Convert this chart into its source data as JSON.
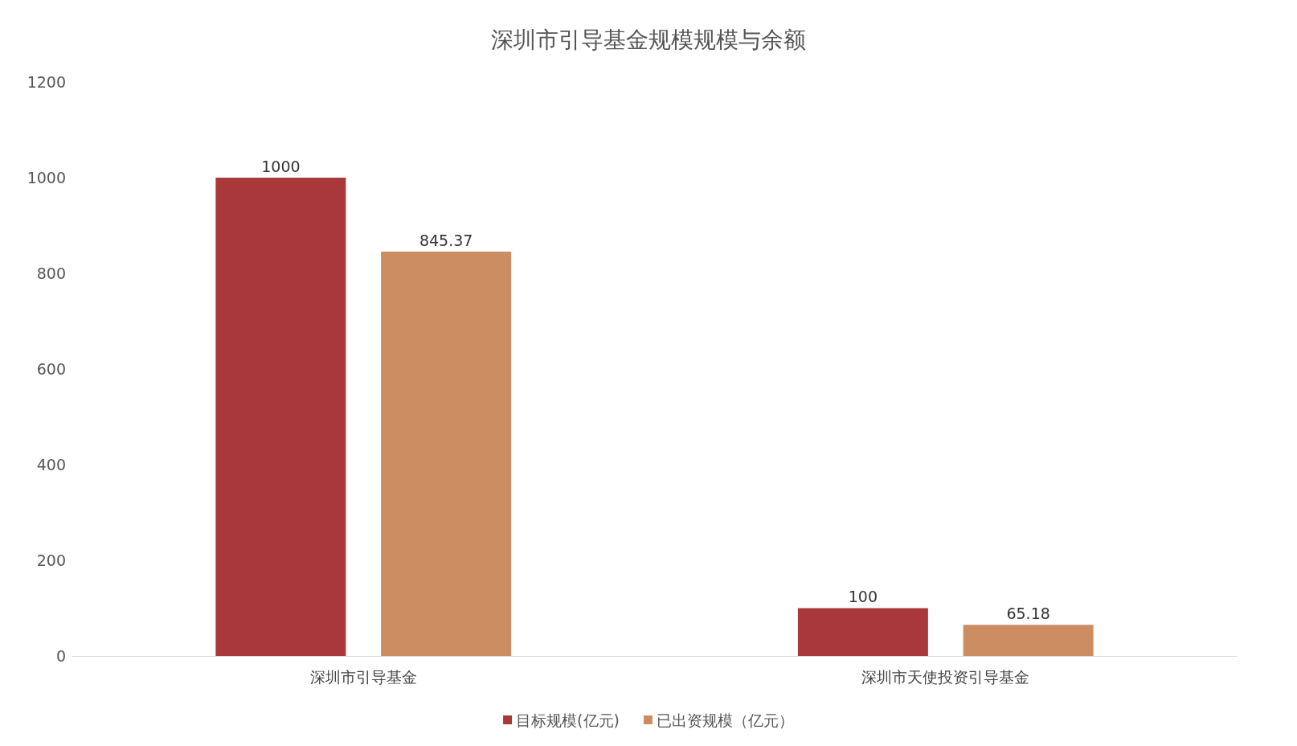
{
  "chart_data": {
    "type": "bar",
    "title": "深圳市引导基金规模规模与余额",
    "categories": [
      "深圳市引导基金",
      "深圳市天使投资引导基金"
    ],
    "series": [
      {
        "name": "目标规模(亿元)",
        "color": "#a9383b",
        "values": [
          1000,
          100
        ]
      },
      {
        "name": "已出资规模（亿元）",
        "color": "#cc8d62",
        "values": [
          845.37,
          65.18
        ]
      }
    ],
    "ylim": [
      0,
      1200
    ],
    "yticks": [
      0,
      200,
      400,
      600,
      800,
      1000,
      1200
    ],
    "grid": false,
    "legend": "bottom",
    "data_labels": true
  }
}
